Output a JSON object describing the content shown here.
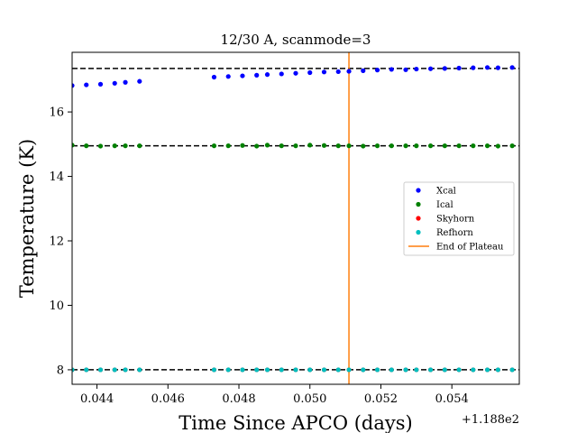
{
  "chart_data": {
    "type": "scatter",
    "title": "12/30 A, scanmode=3",
    "xlabel": "Time Since APCO (days)",
    "ylabel": "Temperature (K)",
    "x_offset_label": "+1.188e2",
    "xlim": [
      118.8433,
      118.8559
    ],
    "ylim": [
      7.55,
      17.85
    ],
    "xticks": [
      118.844,
      118.846,
      118.848,
      118.85,
      118.852,
      118.854
    ],
    "xtick_labels": [
      "0.044",
      "0.046",
      "0.048",
      "0.050",
      "0.052",
      "0.054"
    ],
    "yticks": [
      8,
      10,
      12,
      14,
      16
    ],
    "ytick_labels": [
      "8",
      "10",
      "12",
      "14",
      "16"
    ],
    "grid": false,
    "legend_position": "right",
    "hlines": [
      17.35,
      14.95,
      8.0
    ],
    "vline": {
      "name": "End of Plateau",
      "x": 118.8511,
      "color": "#ff7f0e"
    },
    "x": [
      118.8433,
      118.8437,
      118.8441,
      118.8445,
      118.8448,
      118.8452,
      118.8473,
      118.8477,
      118.8481,
      118.8485,
      118.8488,
      118.8492,
      118.8496,
      118.85,
      118.8504,
      118.8508,
      118.8511,
      118.8515,
      118.8519,
      118.8523,
      118.8527,
      118.853,
      118.8534,
      118.8538,
      118.8542,
      118.8546,
      118.855,
      118.8553,
      118.8557
    ],
    "series": [
      {
        "name": "Xcal",
        "color": "#0000ff",
        "values": [
          16.82,
          16.84,
          16.86,
          16.89,
          16.92,
          16.95,
          17.08,
          17.1,
          17.12,
          17.14,
          17.16,
          17.18,
          17.2,
          17.22,
          17.24,
          17.25,
          17.26,
          17.28,
          17.3,
          17.32,
          17.31,
          17.33,
          17.34,
          17.35,
          17.36,
          17.37,
          17.38,
          17.37,
          17.38
        ]
      },
      {
        "name": "Ical",
        "color": "#008000",
        "values": [
          14.97,
          14.95,
          14.94,
          14.95,
          14.95,
          14.95,
          14.95,
          14.95,
          14.96,
          14.94,
          14.97,
          14.95,
          14.95,
          14.97,
          14.96,
          14.95,
          14.95,
          14.94,
          14.95,
          14.95,
          14.95,
          14.95,
          14.95,
          14.95,
          14.95,
          14.95,
          14.95,
          14.94,
          14.95
        ]
      },
      {
        "name": "Skyhorn",
        "color": "#ff0000",
        "values": [
          8.0,
          8.0,
          8.0,
          8.0,
          8.0,
          8.0,
          8.0,
          8.0,
          8.0,
          8.0,
          8.0,
          8.0,
          8.0,
          8.0,
          8.0,
          8.0,
          8.0,
          8.0,
          8.0,
          8.0,
          8.0,
          8.0,
          8.0,
          8.0,
          8.0,
          8.0,
          8.0,
          8.0,
          8.0
        ]
      },
      {
        "name": "Refhorn",
        "color": "#00bfbf",
        "values": [
          8.0,
          8.0,
          8.0,
          8.0,
          8.0,
          8.0,
          8.0,
          8.0,
          8.0,
          8.0,
          8.0,
          8.0,
          8.0,
          8.0,
          8.0,
          8.0,
          8.0,
          8.0,
          8.0,
          8.0,
          8.0,
          8.0,
          8.0,
          8.0,
          8.0,
          8.0,
          8.0,
          8.0,
          8.0
        ]
      }
    ]
  }
}
